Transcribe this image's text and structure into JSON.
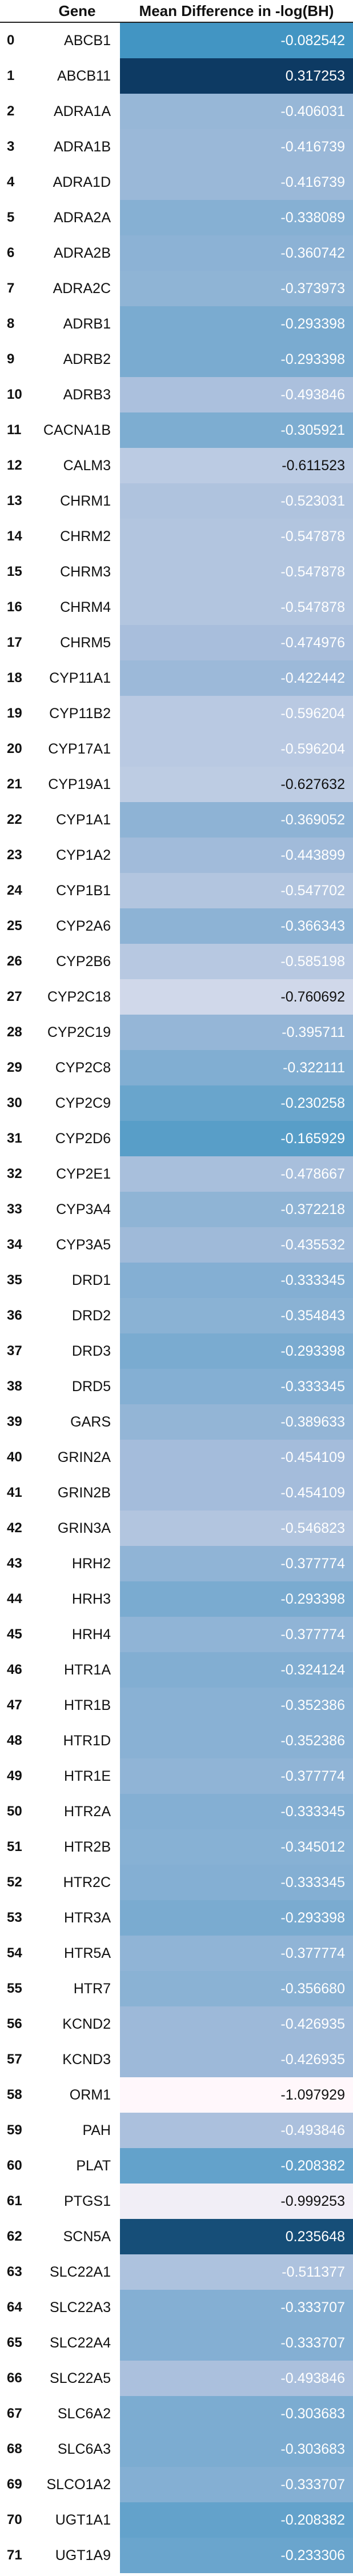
{
  "header": {
    "gene": "Gene",
    "value": "Mean Difference in -log(BH)"
  },
  "rows": [
    {
      "index": "0",
      "gene": "ABCB1",
      "value": "-0.082542"
    },
    {
      "index": "1",
      "gene": "ABCB11",
      "value": "0.317253"
    },
    {
      "index": "2",
      "gene": "ADRA1A",
      "value": "-0.406031"
    },
    {
      "index": "3",
      "gene": "ADRA1B",
      "value": "-0.416739"
    },
    {
      "index": "4",
      "gene": "ADRA1D",
      "value": "-0.416739"
    },
    {
      "index": "5",
      "gene": "ADRA2A",
      "value": "-0.338089"
    },
    {
      "index": "6",
      "gene": "ADRA2B",
      "value": "-0.360742"
    },
    {
      "index": "7",
      "gene": "ADRA2C",
      "value": "-0.373973"
    },
    {
      "index": "8",
      "gene": "ADRB1",
      "value": "-0.293398"
    },
    {
      "index": "9",
      "gene": "ADRB2",
      "value": "-0.293398"
    },
    {
      "index": "10",
      "gene": "ADRB3",
      "value": "-0.493846"
    },
    {
      "index": "11",
      "gene": "CACNA1B",
      "value": "-0.305921"
    },
    {
      "index": "12",
      "gene": "CALM3",
      "value": "-0.611523"
    },
    {
      "index": "13",
      "gene": "CHRM1",
      "value": "-0.523031"
    },
    {
      "index": "14",
      "gene": "CHRM2",
      "value": "-0.547878"
    },
    {
      "index": "15",
      "gene": "CHRM3",
      "value": "-0.547878"
    },
    {
      "index": "16",
      "gene": "CHRM4",
      "value": "-0.547878"
    },
    {
      "index": "17",
      "gene": "CHRM5",
      "value": "-0.474976"
    },
    {
      "index": "18",
      "gene": "CYP11A1",
      "value": "-0.422442"
    },
    {
      "index": "19",
      "gene": "CYP11B2",
      "value": "-0.596204"
    },
    {
      "index": "20",
      "gene": "CYP17A1",
      "value": "-0.596204"
    },
    {
      "index": "21",
      "gene": "CYP19A1",
      "value": "-0.627632"
    },
    {
      "index": "22",
      "gene": "CYP1A1",
      "value": "-0.369052"
    },
    {
      "index": "23",
      "gene": "CYP1A2",
      "value": "-0.443899"
    },
    {
      "index": "24",
      "gene": "CYP1B1",
      "value": "-0.547702"
    },
    {
      "index": "25",
      "gene": "CYP2A6",
      "value": "-0.366343"
    },
    {
      "index": "26",
      "gene": "CYP2B6",
      "value": "-0.585198"
    },
    {
      "index": "27",
      "gene": "CYP2C18",
      "value": "-0.760692"
    },
    {
      "index": "28",
      "gene": "CYP2C19",
      "value": "-0.395711"
    },
    {
      "index": "29",
      "gene": "CYP2C8",
      "value": "-0.322111"
    },
    {
      "index": "30",
      "gene": "CYP2C9",
      "value": "-0.230258"
    },
    {
      "index": "31",
      "gene": "CYP2D6",
      "value": "-0.165929"
    },
    {
      "index": "32",
      "gene": "CYP2E1",
      "value": "-0.478667"
    },
    {
      "index": "33",
      "gene": "CYP3A4",
      "value": "-0.372218"
    },
    {
      "index": "34",
      "gene": "CYP3A5",
      "value": "-0.435532"
    },
    {
      "index": "35",
      "gene": "DRD1",
      "value": "-0.333345"
    },
    {
      "index": "36",
      "gene": "DRD2",
      "value": "-0.354843"
    },
    {
      "index": "37",
      "gene": "DRD3",
      "value": "-0.293398"
    },
    {
      "index": "38",
      "gene": "DRD5",
      "value": "-0.333345"
    },
    {
      "index": "39",
      "gene": "GARS",
      "value": "-0.389633"
    },
    {
      "index": "40",
      "gene": "GRIN2A",
      "value": "-0.454109"
    },
    {
      "index": "41",
      "gene": "GRIN2B",
      "value": "-0.454109"
    },
    {
      "index": "42",
      "gene": "GRIN3A",
      "value": "-0.546823"
    },
    {
      "index": "43",
      "gene": "HRH2",
      "value": "-0.377774"
    },
    {
      "index": "44",
      "gene": "HRH3",
      "value": "-0.293398"
    },
    {
      "index": "45",
      "gene": "HRH4",
      "value": "-0.377774"
    },
    {
      "index": "46",
      "gene": "HTR1A",
      "value": "-0.324124"
    },
    {
      "index": "47",
      "gene": "HTR1B",
      "value": "-0.352386"
    },
    {
      "index": "48",
      "gene": "HTR1D",
      "value": "-0.352386"
    },
    {
      "index": "49",
      "gene": "HTR1E",
      "value": "-0.377774"
    },
    {
      "index": "50",
      "gene": "HTR2A",
      "value": "-0.333345"
    },
    {
      "index": "51",
      "gene": "HTR2B",
      "value": "-0.345012"
    },
    {
      "index": "52",
      "gene": "HTR2C",
      "value": "-0.333345"
    },
    {
      "index": "53",
      "gene": "HTR3A",
      "value": "-0.293398"
    },
    {
      "index": "54",
      "gene": "HTR5A",
      "value": "-0.377774"
    },
    {
      "index": "55",
      "gene": "HTR7",
      "value": "-0.356680"
    },
    {
      "index": "56",
      "gene": "KCND2",
      "value": "-0.426935"
    },
    {
      "index": "57",
      "gene": "KCND3",
      "value": "-0.426935"
    },
    {
      "index": "58",
      "gene": "ORM1",
      "value": "-1.097929"
    },
    {
      "index": "59",
      "gene": "PAH",
      "value": "-0.493846"
    },
    {
      "index": "60",
      "gene": "PLAT",
      "value": "-0.208382"
    },
    {
      "index": "61",
      "gene": "PTGS1",
      "value": "-0.999253"
    },
    {
      "index": "62",
      "gene": "SCN5A",
      "value": "0.235648"
    },
    {
      "index": "63",
      "gene": "SLC22A1",
      "value": "-0.511377"
    },
    {
      "index": "64",
      "gene": "SLC22A3",
      "value": "-0.333707"
    },
    {
      "index": "65",
      "gene": "SLC22A4",
      "value": "-0.333707"
    },
    {
      "index": "66",
      "gene": "SLC22A5",
      "value": "-0.493846"
    },
    {
      "index": "67",
      "gene": "SLC6A2",
      "value": "-0.303683"
    },
    {
      "index": "68",
      "gene": "SLC6A3",
      "value": "-0.303683"
    },
    {
      "index": "69",
      "gene": "SLCO1A2",
      "value": "-0.333707"
    },
    {
      "index": "70",
      "gene": "UGT1A1",
      "value": "-0.208382"
    },
    {
      "index": "71",
      "gene": "UGT1A9",
      "value": "-0.233306"
    }
  ],
  "colors": {
    "min": "#fff7fb",
    "mid_light": "#a6bddb",
    "mid": "#3690c0",
    "max": "#0d3a63",
    "text_dark": "#111111",
    "text_light": "#ffffff"
  }
}
